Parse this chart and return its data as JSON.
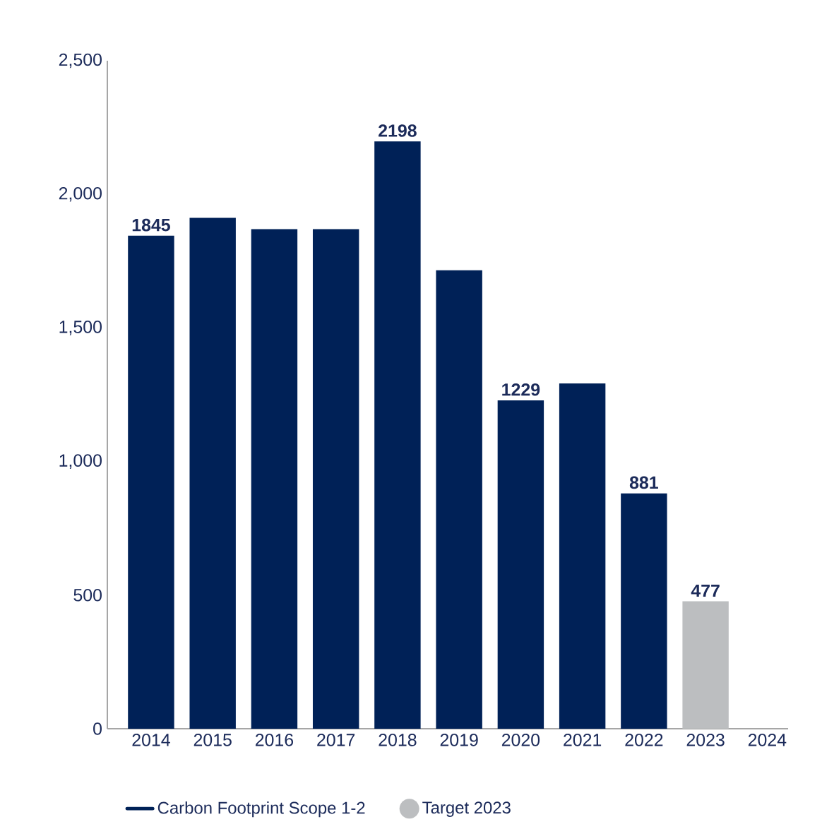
{
  "chart_data": {
    "type": "bar",
    "categories": [
      "2014",
      "2015",
      "2016",
      "2017",
      "2018",
      "2019",
      "2020",
      "2021",
      "2022",
      "2023",
      "2024"
    ],
    "series": [
      {
        "name": "Carbon Footprint Scope 1-2",
        "color": "#002157",
        "values": [
          1845,
          1912,
          1870,
          1870,
          2198,
          1716,
          1229,
          1292,
          881,
          null,
          null
        ],
        "value_labels": [
          "1845",
          null,
          null,
          null,
          "2198",
          null,
          "1229",
          null,
          "881",
          null,
          null
        ]
      },
      {
        "name": "Target 2023",
        "color": "#bcbec0",
        "values": [
          null,
          null,
          null,
          null,
          null,
          null,
          null,
          null,
          null,
          477,
          null
        ],
        "value_labels": [
          null,
          null,
          null,
          null,
          null,
          null,
          null,
          null,
          null,
          "477",
          null
        ]
      }
    ],
    "ylim": [
      0,
      2500
    ],
    "yticks": [
      0,
      {
        "value": 500,
        "label": "500"
      },
      {
        "value": 1000,
        "label": "1,000"
      },
      {
        "value": 1500,
        "label": "1,500"
      },
      {
        "value": 2000,
        "label": "2,000"
      },
      {
        "value": 2500,
        "label": "2,500"
      }
    ],
    "grid": false,
    "legend": "bottom"
  }
}
